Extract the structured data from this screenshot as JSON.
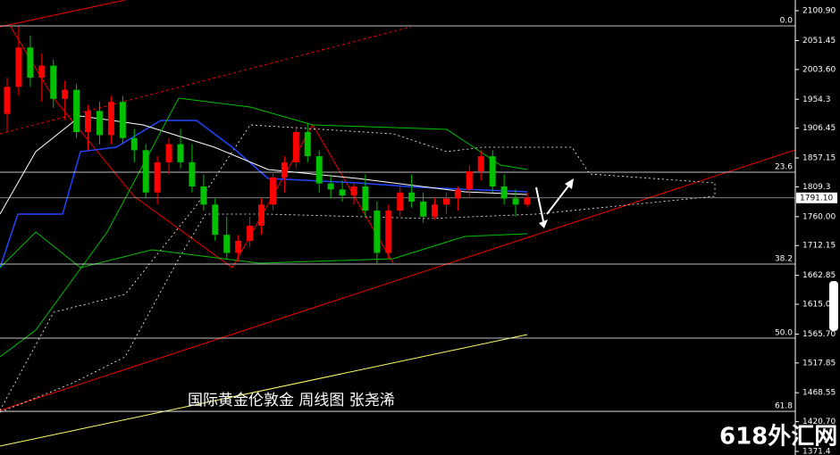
{
  "chart_data": {
    "type": "candlestick",
    "caption": "国际黄金伦敦金 周线图 张尧浠",
    "watermark": "618外汇网",
    "up_color": "#ff0000",
    "down_color": "#00c000",
    "ylim": [
      1365.5,
      2118.6
    ],
    "yticks": [
      {
        "value": 2100.9,
        "label": "2100.90"
      },
      2051.45,
      {
        "value": 2003.6,
        "label": "2003.60"
      },
      1954.3,
      1906.45,
      1857.15,
      1809.3,
      {
        "value": 1760.0,
        "label": "1760.00"
      },
      1712.15,
      1662.85,
      {
        "value": 1615.0,
        "label": "1615.00"
      },
      {
        "value": 1565.7,
        "label": "1565.70"
      },
      1517.85,
      1468.55,
      {
        "value": 1420.7,
        "label": "1420.70"
      },
      1371.4
    ],
    "last_price": {
      "value": 1791.1,
      "label": "1791.10"
    },
    "fib_levels": [
      {
        "label": "0.0",
        "price": 2075.8
      },
      {
        "label": "23.6",
        "price": 1833.6
      },
      {
        "label": "38.2",
        "price": 1681.5
      },
      {
        "label": "50.0",
        "price": 1558.9
      },
      {
        "label": "61.8",
        "price": 1437.8
      }
    ],
    "open": [
      1930,
      1975,
      2040,
      1990,
      2010,
      1955,
      1970,
      1900,
      1935,
      1895,
      1950,
      1890,
      1870,
      1800,
      1850,
      1880,
      1850,
      1810,
      1780,
      1730,
      1700,
      1720,
      1745,
      1780,
      1825,
      1850,
      1900,
      1860,
      1815,
      1805,
      1795,
      1810,
      1770,
      1700,
      1770,
      1800,
      1785,
      1760,
      1780,
      1790,
      1805,
      1835,
      1860,
      1810,
      1790,
      1780
    ],
    "high": [
      1990,
      2075,
      2060,
      2030,
      2020,
      1985,
      1980,
      1945,
      1950,
      1960,
      1960,
      1905,
      1880,
      1860,
      1890,
      1905,
      1880,
      1830,
      1790,
      1760,
      1730,
      1760,
      1790,
      1835,
      1860,
      1910,
      1915,
      1870,
      1830,
      1820,
      1815,
      1830,
      1785,
      1780,
      1810,
      1830,
      1800,
      1790,
      1800,
      1810,
      1845,
      1870,
      1870,
      1830,
      1805,
      1800
    ],
    "low": [
      1900,
      1960,
      1975,
      1950,
      1940,
      1920,
      1890,
      1870,
      1880,
      1880,
      1880,
      1850,
      1790,
      1780,
      1830,
      1840,
      1800,
      1770,
      1720,
      1690,
      1685,
      1710,
      1730,
      1770,
      1800,
      1840,
      1850,
      1800,
      1790,
      1785,
      1780,
      1760,
      1683,
      1690,
      1760,
      1775,
      1750,
      1755,
      1765,
      1770,
      1790,
      1820,
      1800,
      1780,
      1760,
      1775
    ],
    "close": [
      1975,
      2040,
      1990,
      2010,
      1955,
      1970,
      1900,
      1935,
      1895,
      1950,
      1890,
      1870,
      1800,
      1850,
      1880,
      1850,
      1810,
      1780,
      1730,
      1700,
      1720,
      1745,
      1780,
      1825,
      1850,
      1900,
      1860,
      1815,
      1805,
      1795,
      1810,
      1770,
      1700,
      1770,
      1800,
      1785,
      1760,
      1780,
      1790,
      1805,
      1835,
      1860,
      1810,
      1790,
      1780,
      1791.1
    ]
  }
}
